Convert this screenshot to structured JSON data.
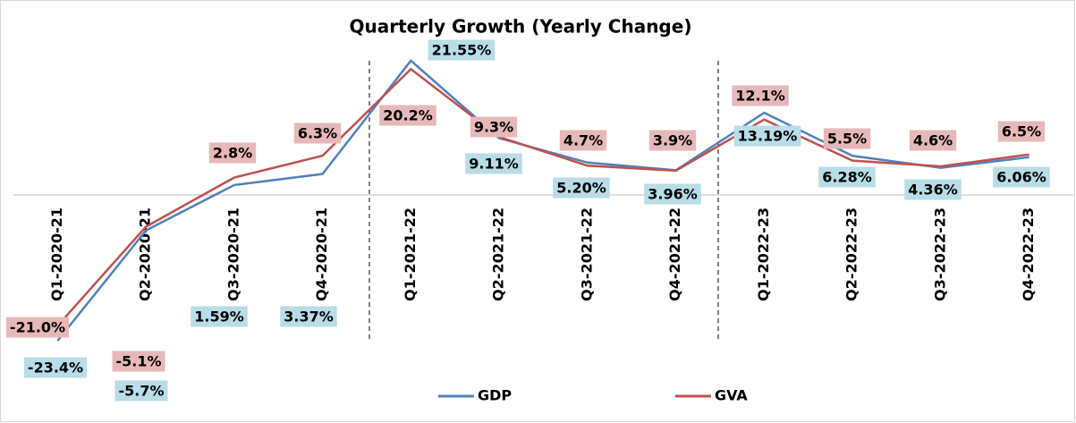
{
  "chart_data": {
    "type": "line",
    "title": "Quarterly Growth (Yearly Change)",
    "categories": [
      "Q1-2020-21",
      "Q2-2020-21",
      "Q3-2020-21",
      "Q4-2020-21",
      "Q1-2021-22",
      "Q2-2021-22",
      "Q3-2021-22",
      "Q4-2021-22",
      "Q1-2022-23",
      "Q2-2022-23",
      "Q3-2022-23",
      "Q4-2022-23"
    ],
    "series": [
      {
        "name": "GDP",
        "color": "#4f81bd",
        "label_color": "#b7dde8",
        "values": [
          -23.4,
          -5.7,
          1.59,
          3.37,
          21.55,
          9.11,
          5.2,
          3.96,
          13.19,
          6.28,
          4.36,
          6.06
        ],
        "value_labels": [
          "-23.4%",
          "-5.7%",
          "1.59%",
          "3.37%",
          "21.55%",
          "9.11%",
          "5.20%",
          "3.96%",
          "13.19%",
          "6.28%",
          "4.36%",
          "6.06%"
        ]
      },
      {
        "name": "GVA",
        "color": "#c0504d",
        "label_color": "#e6b9b8",
        "values": [
          -21.0,
          -5.1,
          2.8,
          6.3,
          20.2,
          9.3,
          4.7,
          3.9,
          12.1,
          5.5,
          4.6,
          6.5
        ],
        "value_labels": [
          "-21.0%",
          "-5.1%",
          "2.8%",
          "6.3%",
          "20.2%",
          "9.3%",
          "4.7%",
          "3.9%",
          "12.1%",
          "5.5%",
          "4.6%",
          "6.5%"
        ]
      }
    ],
    "ylim": [
      -30,
      30
    ],
    "legend": "bottom"
  }
}
